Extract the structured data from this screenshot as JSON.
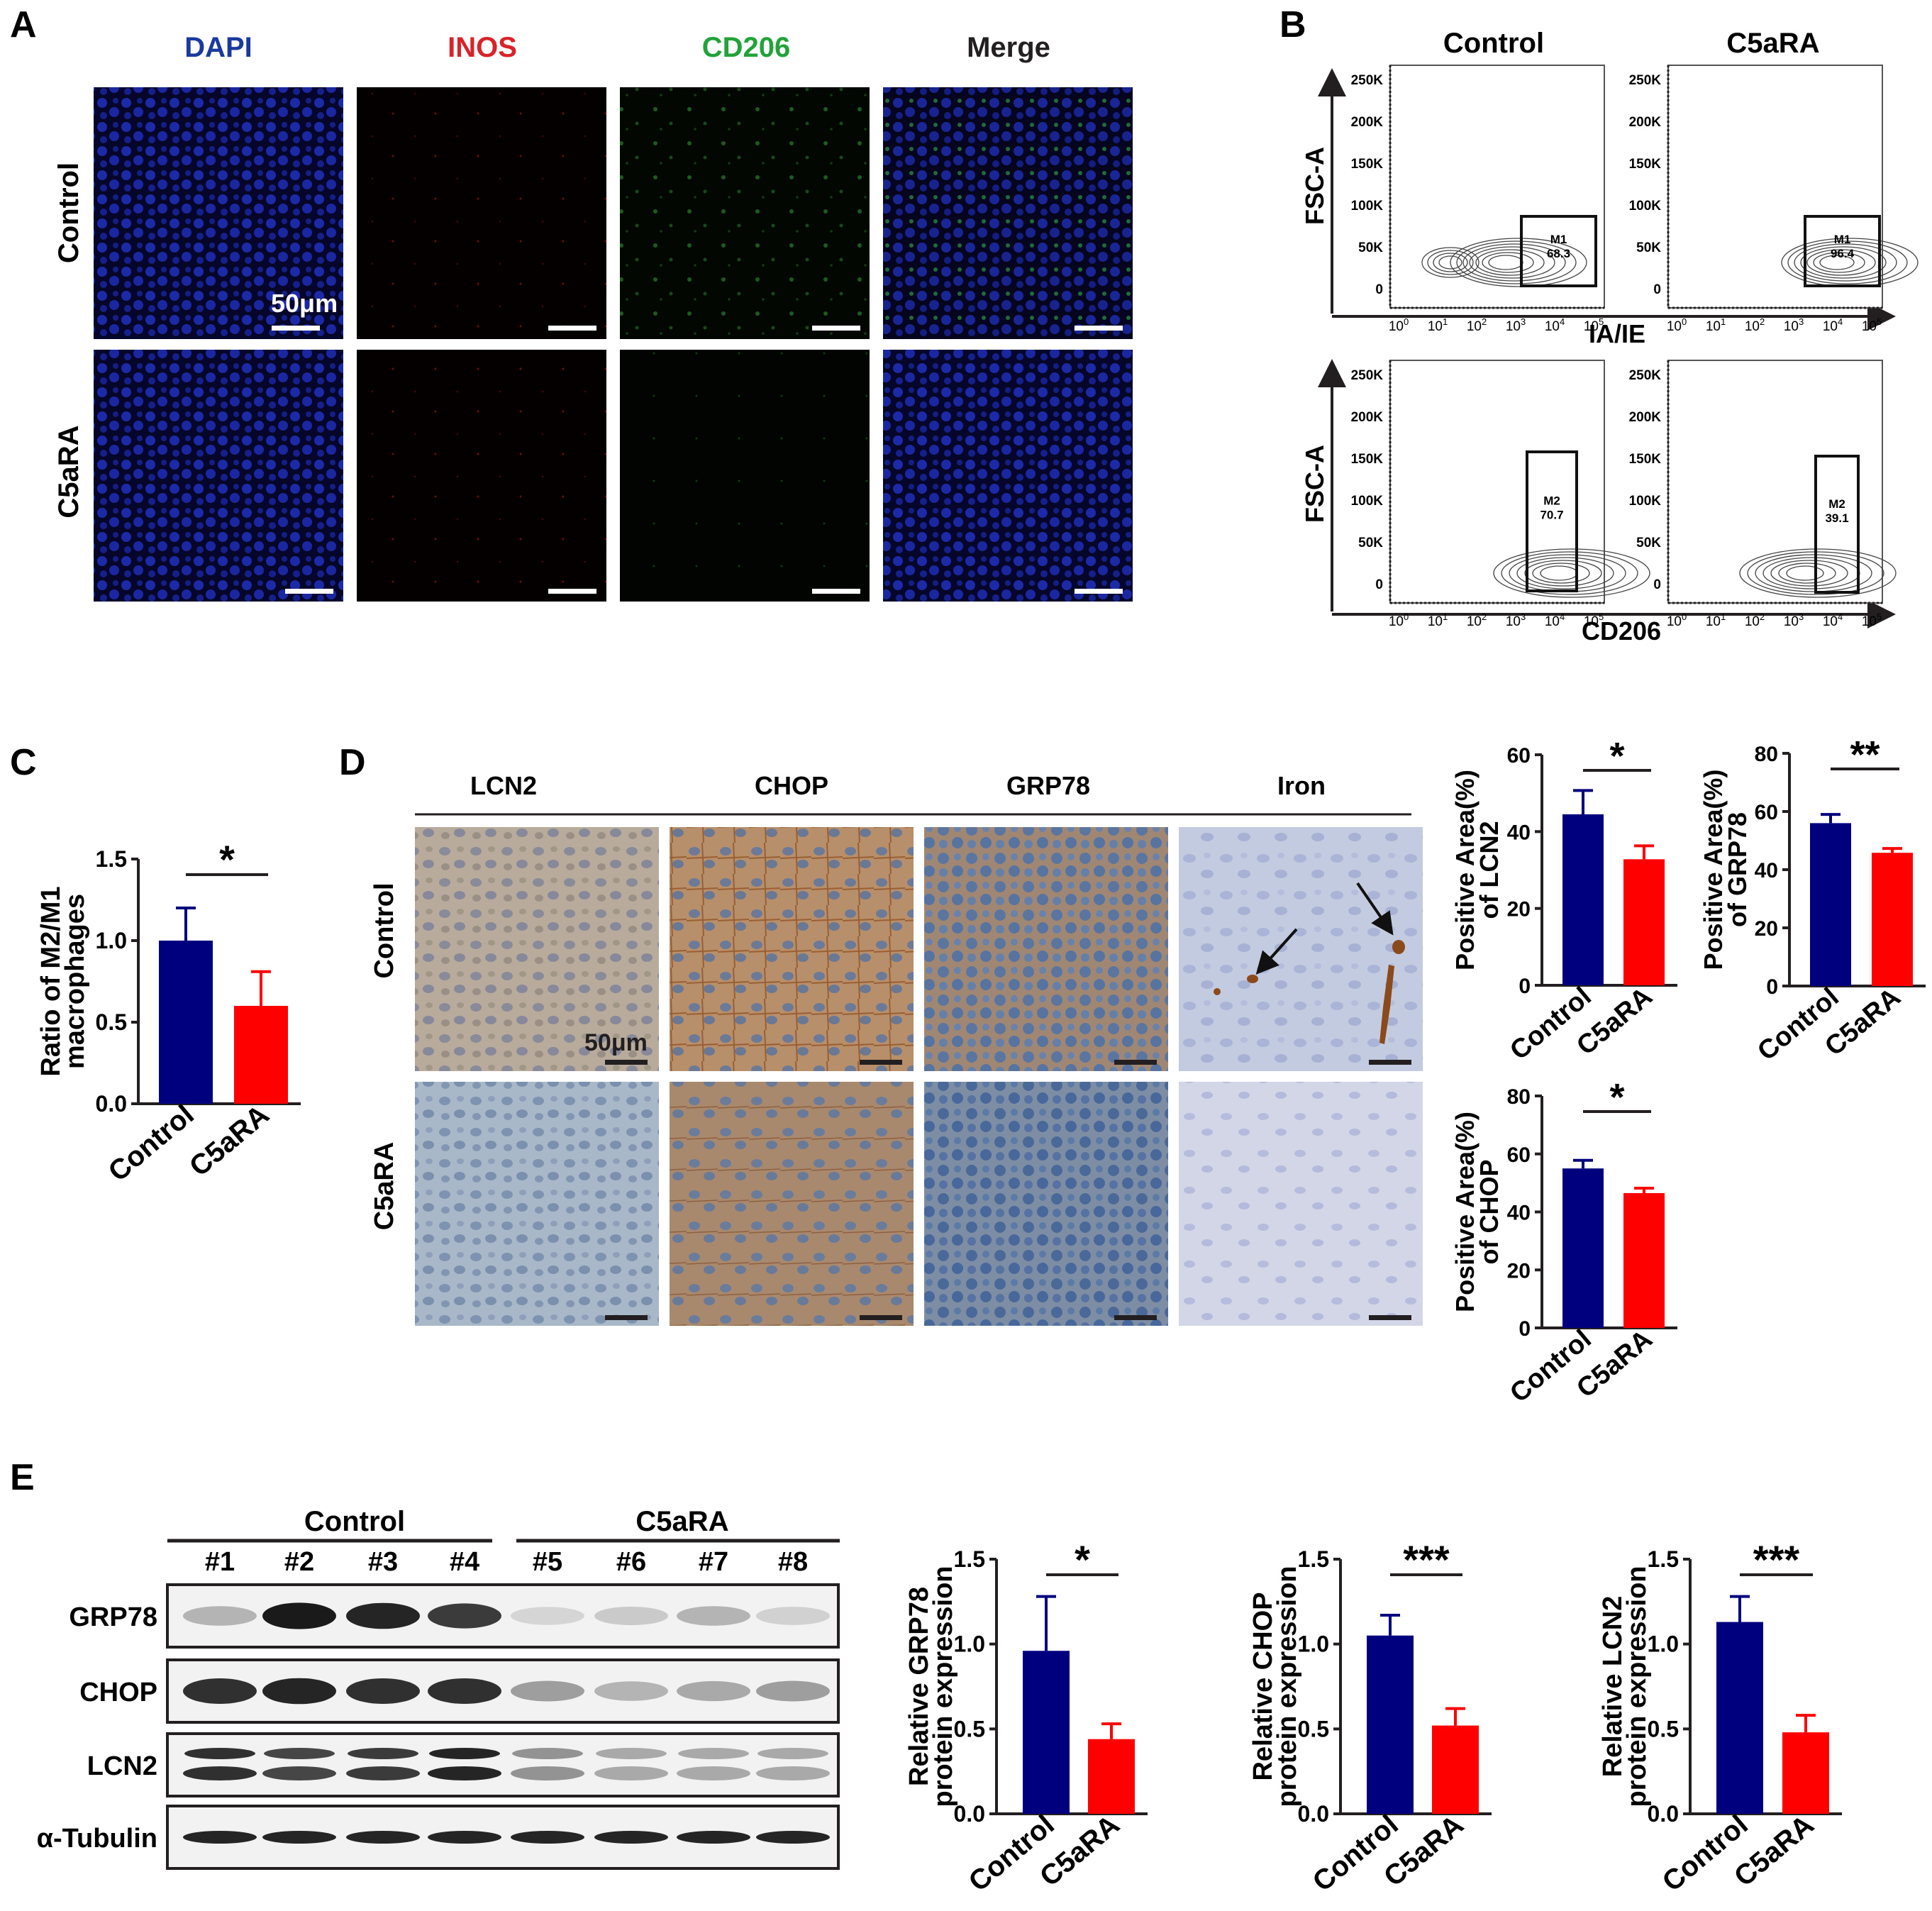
{
  "panels": {
    "A": {
      "letter": "A",
      "columns": [
        "DAPI",
        "INOS",
        "CD206",
        "Merge"
      ],
      "column_colors": [
        "#1a3a9e",
        "#d9232a",
        "#22a33a",
        "#231f20"
      ],
      "rows": [
        "Control",
        "C5aRA"
      ],
      "scale_label": "50μm"
    },
    "B": {
      "letter": "B",
      "columns": [
        "Control",
        "C5aRA"
      ],
      "rows": [
        {
          "ylabel": "FSC-A",
          "xlabel": "IA/IE",
          "gate_name": "M1",
          "values": [
            "68.3",
            "96.4"
          ]
        },
        {
          "ylabel": "FSC-A",
          "xlabel": "CD206",
          "gate_name": "M2",
          "values": [
            "70.7",
            "39.1"
          ]
        }
      ],
      "yticks": [
        "250K",
        "200K",
        "150K",
        "100K",
        "50K",
        "0"
      ],
      "xticks": [
        [
          "10",
          "0"
        ],
        [
          "10",
          "1"
        ],
        [
          "10",
          "2"
        ],
        [
          "10",
          "3"
        ],
        [
          "10",
          "4"
        ],
        [
          "10",
          "5"
        ]
      ]
    },
    "D": {
      "letter": "D",
      "columns": [
        "LCN2",
        "CHOP",
        "GRP78",
        "Iron"
      ],
      "rows": [
        "Control",
        "C5aRA"
      ],
      "scale_label": "50μm"
    },
    "E": {
      "letter": "E",
      "groups": [
        "Control",
        "C5aRA"
      ],
      "lanes": [
        "#1",
        "#2",
        "#3",
        "#4",
        "#5",
        "#6",
        "#7",
        "#8"
      ],
      "proteins": [
        "GRP78",
        "CHOP",
        "LCN2",
        "α-Tubulin"
      ]
    }
  },
  "colors": {
    "control": "#00007f",
    "c5ara": "#ff0000"
  },
  "chart_data": [
    {
      "id": "C",
      "panel": "C",
      "type": "bar",
      "categories": [
        "Control",
        "C5aRA"
      ],
      "values": [
        1.0,
        0.6
      ],
      "errors": [
        0.2,
        0.21
      ],
      "ylabel": [
        "Ratio of M2/M1",
        "macrophages"
      ],
      "ylim": [
        0,
        1.5
      ],
      "yticks": [
        "0.0",
        "0.5",
        "1.0",
        "1.5"
      ],
      "significance": "*"
    },
    {
      "id": "D1",
      "panel": "D",
      "type": "bar",
      "categories": [
        "Control",
        "C5aRA"
      ],
      "values": [
        44.5,
        32.8
      ],
      "errors": [
        6.2,
        3.5
      ],
      "ylabel": [
        "Positive Area(%)",
        "of LCN2"
      ],
      "ylim": [
        0,
        60
      ],
      "yticks": [
        "0",
        "20",
        "40",
        "60"
      ],
      "significance": "*"
    },
    {
      "id": "D2",
      "panel": "D",
      "type": "bar",
      "categories": [
        "Control",
        "C5aRA"
      ],
      "values": [
        56.0,
        45.8
      ],
      "errors": [
        3.0,
        1.5
      ],
      "ylabel": [
        "Positive Area(%)",
        "of GRP78"
      ],
      "ylim": [
        0,
        80
      ],
      "yticks": [
        "0",
        "20",
        "40",
        "60",
        "80"
      ],
      "significance": "**"
    },
    {
      "id": "D3",
      "panel": "D",
      "type": "bar",
      "categories": [
        "Control",
        "C5aRA"
      ],
      "values": [
        55.0,
        46.5
      ],
      "errors": [
        2.8,
        1.7
      ],
      "ylabel": [
        "Positive Area(%)",
        "of CHOP"
      ],
      "ylim": [
        0,
        80
      ],
      "yticks": [
        "0",
        "20",
        "40",
        "60",
        "80"
      ],
      "significance": "*"
    },
    {
      "id": "E1",
      "panel": "E",
      "type": "bar",
      "categories": [
        "Control",
        "C5aRA"
      ],
      "values": [
        0.96,
        0.44
      ],
      "errors": [
        0.32,
        0.09
      ],
      "ylabel": [
        "Relative GRP78",
        "protein expression"
      ],
      "ylim": [
        0,
        1.5
      ],
      "yticks": [
        "0.0",
        "0.5",
        "1.0",
        "1.5"
      ],
      "significance": "*"
    },
    {
      "id": "E2",
      "panel": "E",
      "type": "bar",
      "categories": [
        "Control",
        "C5aRA"
      ],
      "values": [
        1.05,
        0.52
      ],
      "errors": [
        0.12,
        0.1
      ],
      "ylabel": [
        "Relative CHOP",
        "protein expression"
      ],
      "ylim": [
        0,
        1.5
      ],
      "yticks": [
        "0.0",
        "0.5",
        "1.0",
        "1.5"
      ],
      "significance": "***"
    },
    {
      "id": "E3",
      "panel": "E",
      "type": "bar",
      "categories": [
        "Control",
        "C5aRA"
      ],
      "values": [
        1.13,
        0.48
      ],
      "errors": [
        0.15,
        0.1
      ],
      "ylabel": [
        "Relative LCN2",
        "protein expression"
      ],
      "ylim": [
        0,
        1.5
      ],
      "yticks": [
        "0.0",
        "0.5",
        "1.0",
        "1.5"
      ],
      "significance": "***"
    }
  ]
}
